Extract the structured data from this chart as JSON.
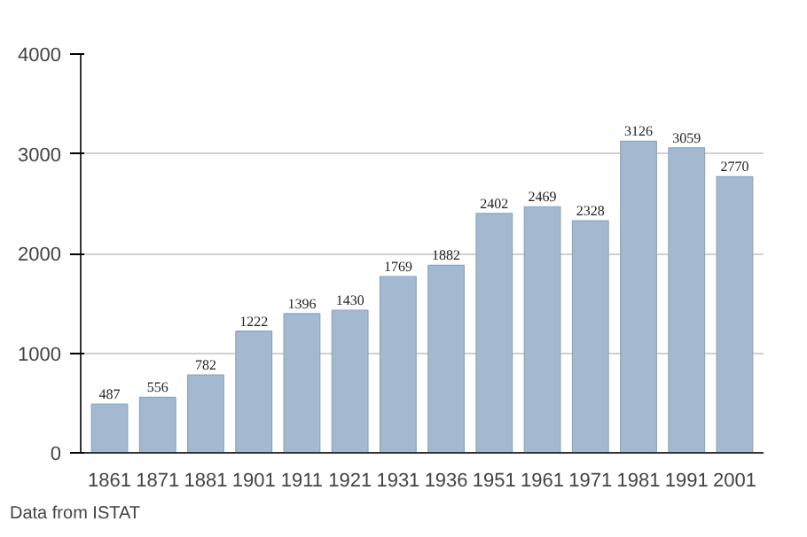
{
  "chart_data": {
    "type": "bar",
    "categories": [
      "1861",
      "1871",
      "1881",
      "1901",
      "1911",
      "1921",
      "1931",
      "1936",
      "1951",
      "1961",
      "1971",
      "1981",
      "1991",
      "2001"
    ],
    "values": [
      487,
      556,
      782,
      1222,
      1396,
      1430,
      1769,
      1882,
      2402,
      2469,
      2328,
      3126,
      3059,
      2770
    ],
    "color": "#a3b9d0",
    "ylim": [
      0,
      4000
    ],
    "yticks": [
      0,
      1000,
      2000,
      3000,
      4000
    ],
    "grid": "y",
    "data_labels": true,
    "annotations": [
      "Data from ISTAT"
    ]
  }
}
